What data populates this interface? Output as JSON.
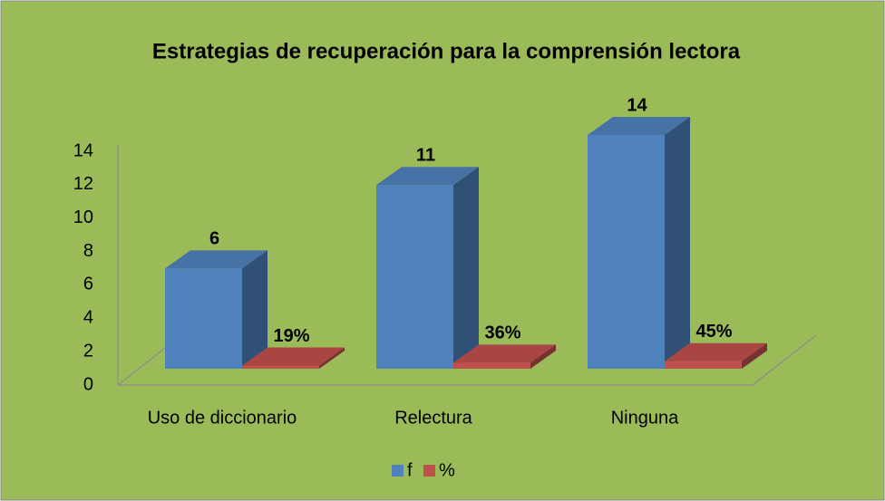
{
  "chart_data": {
    "type": "bar",
    "title": "Estrategias de recuperación  para la comprensión lectora",
    "categories": [
      "Uso de diccionario",
      "Relectura",
      "Ninguna"
    ],
    "series": [
      {
        "name": "f",
        "color": "#4f81bd",
        "values": [
          6,
          11,
          14
        ]
      },
      {
        "name": "%",
        "color": "#c0504d",
        "values": [
          0.19,
          0.36,
          0.45
        ],
        "value_labels": [
          "19%",
          "36%",
          "45%"
        ]
      }
    ],
    "ylim": [
      0,
      14
    ],
    "yticks": [
      0,
      2,
      4,
      6,
      8,
      10,
      12,
      14
    ],
    "legend": "bottom"
  }
}
